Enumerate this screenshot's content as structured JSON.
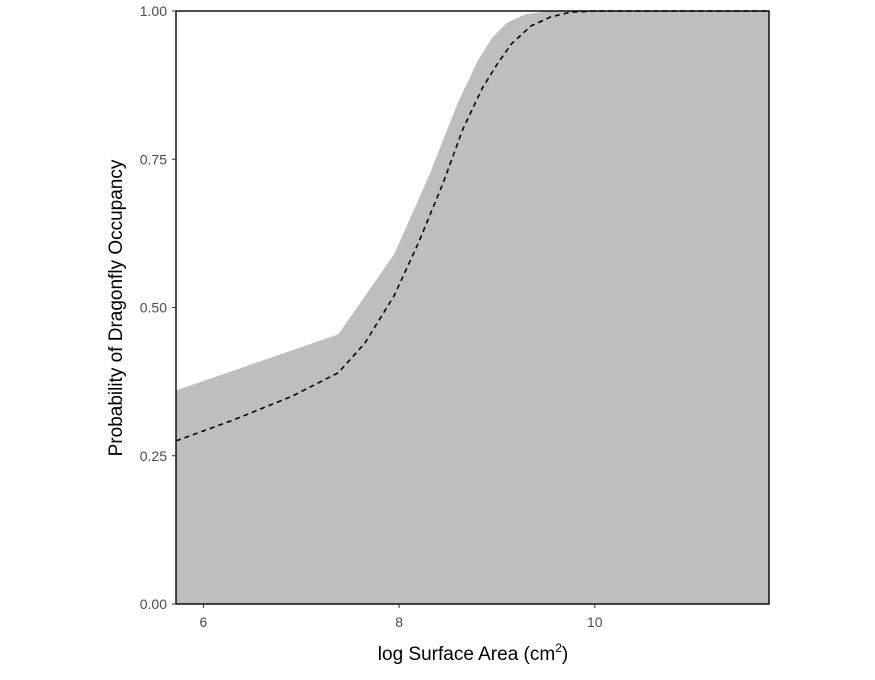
{
  "chart_data": {
    "type": "area",
    "xlabel": "log Surface Area (cm",
    "xlabel_sup": "2",
    "xlabel_tail": ")",
    "ylabel": "Probability of Dragonfly Occupancy",
    "xlim": [
      5.72,
      11.78
    ],
    "ylim": [
      0,
      1
    ],
    "x_ticks": [
      6,
      8,
      10
    ],
    "x_tick_labels": [
      "6",
      "8",
      "10"
    ],
    "y_ticks": [
      0,
      0.25,
      0.5,
      0.75,
      1
    ],
    "y_tick_labels": [
      "0.00",
      "0.25",
      "0.50",
      "0.75",
      "1.00"
    ],
    "grid": false,
    "band": {
      "fill": "#bebebe",
      "x": [
        5.72,
        7.38,
        7.95,
        8.3,
        8.6,
        8.8,
        8.95,
        9.1,
        9.3,
        9.55,
        9.8,
        10.2,
        11.78
      ],
      "lower": [
        0,
        0,
        0,
        0,
        0,
        0,
        0,
        0,
        0,
        0,
        0,
        0,
        0
      ],
      "upper": [
        0.36,
        0.455,
        0.59,
        0.72,
        0.845,
        0.915,
        0.955,
        0.98,
        0.995,
        1.0,
        1.0,
        1.0,
        1.0
      ]
    },
    "series": [
      {
        "line": "dashed",
        "color": "#000000",
        "x": [
          5.72,
          6.3,
          6.9,
          7.38,
          7.65,
          7.95,
          8.2,
          8.45,
          8.65,
          8.85,
          9.0,
          9.15,
          9.35,
          9.55,
          9.75,
          10.0,
          11.78
        ],
        "y": [
          0.275,
          0.31,
          0.35,
          0.39,
          0.44,
          0.52,
          0.61,
          0.71,
          0.8,
          0.87,
          0.91,
          0.945,
          0.975,
          0.99,
          0.998,
          1.0,
          1.0
        ]
      }
    ]
  }
}
